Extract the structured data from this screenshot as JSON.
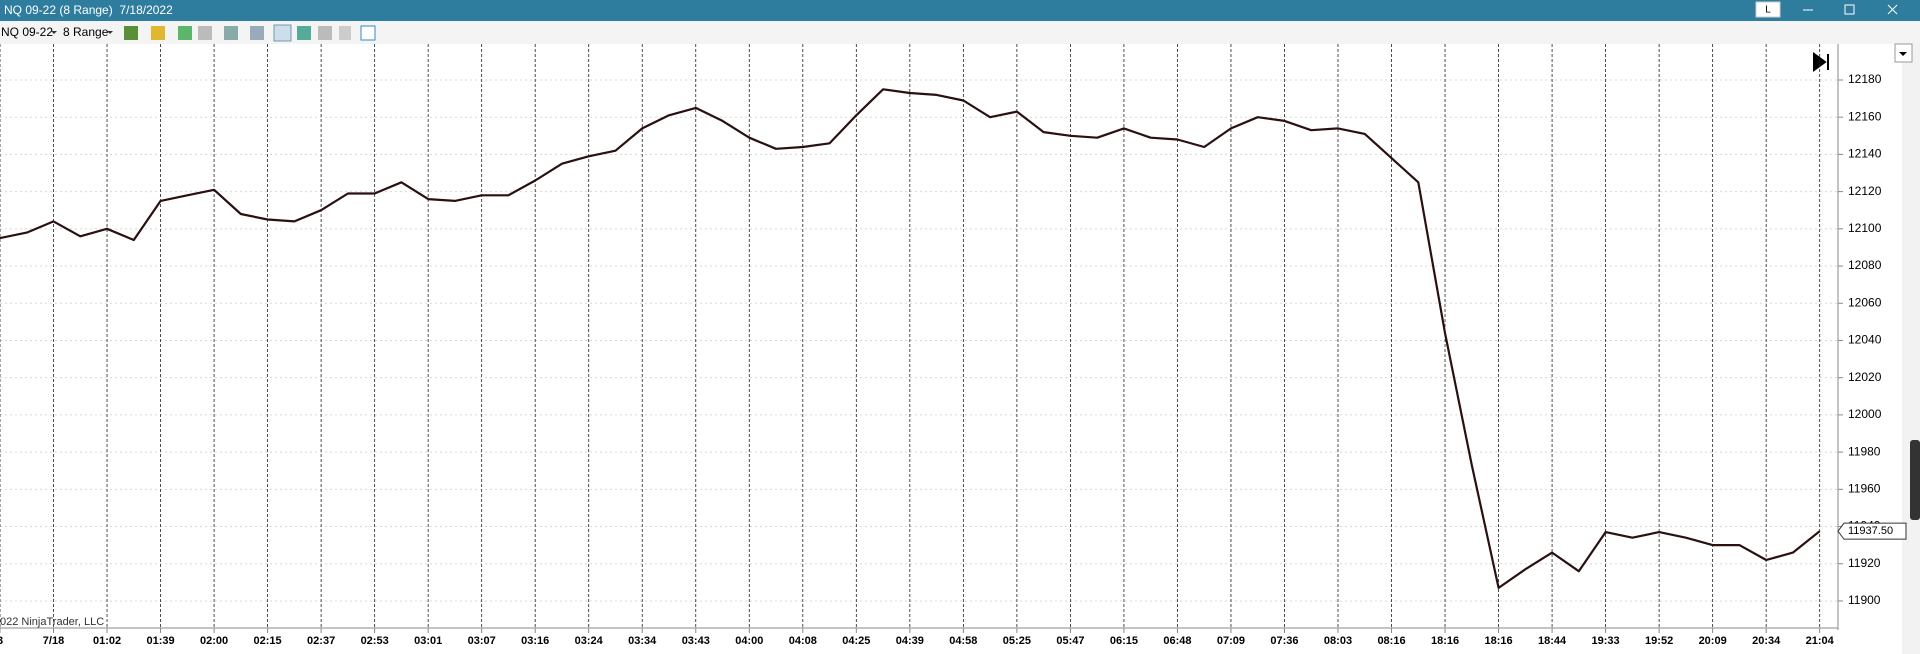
{
  "window": {
    "title": "NQ 09-22 (8 Range)  7/18/2022",
    "button": "L"
  },
  "toolbar": {
    "instrument": "NQ 09-22",
    "period": "8 Range"
  },
  "chart_data": {
    "type": "line",
    "categories": [
      "3",
      null,
      "7/18",
      null,
      "01:02",
      null,
      "01:39",
      null,
      "02:00",
      null,
      "02:15",
      null,
      "02:37",
      null,
      "02:53",
      null,
      "03:01",
      null,
      "03:07",
      null,
      "03:16",
      null,
      "03:24",
      null,
      "03:34",
      null,
      "03:43",
      null,
      "04:00",
      null,
      "04:08",
      null,
      "04:25",
      null,
      "04:39",
      null,
      "04:58",
      null,
      "05:25",
      null,
      "05:47",
      null,
      "06:15",
      null,
      "06:48",
      null,
      "07:09",
      null,
      "07:36",
      null,
      "08:03",
      null,
      "08:16",
      null,
      "18:16",
      null,
      "18:16",
      null,
      "18:44",
      null,
      "19:33",
      null,
      "19:52",
      null,
      "20:09",
      null,
      "20:34",
      null,
      "21:04"
    ],
    "values": [
      12095,
      12098,
      12104,
      12096,
      12100,
      12094,
      12115,
      12118,
      12121,
      12108,
      12105,
      12104,
      12110,
      12119,
      12119,
      12125,
      12116,
      12115,
      12118,
      12118,
      12126,
      12135,
      12139,
      12142,
      12154,
      12161,
      12165,
      12158,
      12149,
      12143,
      12144,
      12146,
      12161,
      12175,
      12173,
      12172,
      12169,
      12160,
      12163,
      12152,
      12150,
      12149,
      12154,
      12149,
      12148,
      12144,
      12154,
      12160,
      12158,
      12153,
      12154,
      12151,
      12138,
      12125,
      12044,
      11973,
      11907,
      11917,
      11926,
      11916,
      11937,
      11934,
      11937,
      11934,
      11930,
      11930,
      11922,
      11926,
      11937.5
    ],
    "color": "#2a1010",
    "ylim": [
      11886,
      12198
    ],
    "yticks": [
      11900,
      11920,
      11940,
      11960,
      11980,
      12000,
      12020,
      12040,
      12060,
      12080,
      12100,
      12120,
      12140,
      12160,
      12180
    ],
    "grid": true,
    "last_price": {
      "value": 11937.5,
      "label": "11937.50"
    },
    "copyright": "022 NinjaTrader, LLC"
  }
}
